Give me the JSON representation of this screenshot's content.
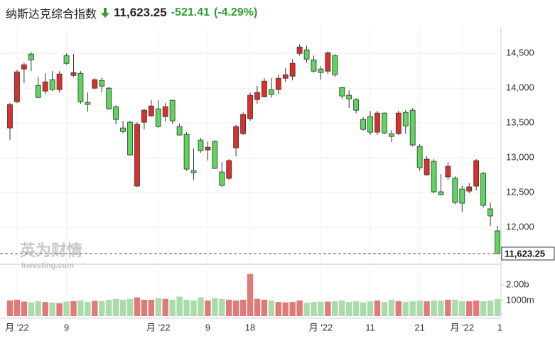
{
  "header": {
    "title": "纳斯达克综合指数",
    "price": "11,623.25",
    "change": "-521.41",
    "change_pct": "(-4.29%)"
  },
  "chart_data": {
    "type": "candlestick",
    "watermark": {
      "text": "英为财情",
      "sub": "Investing.com"
    },
    "categories": [
      null,
      "月 '22",
      null,
      null,
      null,
      null,
      null,
      null,
      "9",
      null,
      null,
      null,
      null,
      null,
      null,
      null,
      null,
      null,
      null,
      null,
      null,
      "月 '22",
      null,
      null,
      null,
      null,
      null,
      null,
      "9",
      null,
      null,
      null,
      null,
      null,
      "18",
      null,
      null,
      null,
      null,
      null,
      null,
      null,
      null,
      null,
      "月 '22",
      null,
      null,
      null,
      null,
      null,
      null,
      "11",
      null,
      null,
      null,
      null,
      null,
      null,
      "21",
      null,
      null,
      null,
      null,
      null,
      "月 '22",
      null,
      null,
      null,
      null,
      "1"
    ],
    "open": [
      13429,
      13806,
      14276,
      14490,
      14041,
      13959,
      14123,
      13980,
      14469,
      14184,
      14214,
      13796,
      14000,
      14112,
      14000,
      13735,
      13429,
      13511,
      12593,
      13511,
      13602,
      13704,
      13592,
      13827,
      13449,
      13337,
      12817,
      13255,
      13113,
      13235,
      12796,
      12705,
      13143,
      13347,
      13562,
      13837,
      13878,
      13980,
      13980,
      14143,
      14173,
      14500,
      14551,
      14408,
      14276,
      14245,
      14469,
      14010,
      13898,
      13837,
      13551,
      13592,
      13368,
      13643,
      13347,
      13347,
      13653,
      13684,
      13164,
      12755,
      12950,
      12511,
      12725,
      12705,
      12551,
      12521,
      12593,
      12776,
      12266,
      11950
    ],
    "high": [
      13786,
      14265,
      14367,
      14520,
      14163,
      14214,
      14245,
      14245,
      14500,
      14490,
      14245,
      13939,
      14143,
      14153,
      14021,
      13755,
      13531,
      13531,
      13511,
      13704,
      13827,
      13827,
      13786,
      13837,
      13490,
      13368,
      13133,
      13286,
      13235,
      13255,
      12939,
      12980,
      13470,
      13653,
      13939,
      14031,
      14143,
      14143,
      14194,
      14286,
      14418,
      14633,
      14612,
      14469,
      14316,
      14531,
      14490,
      14021,
      13970,
      13857,
      13582,
      13674,
      13674,
      13653,
      13398,
      13674,
      13684,
      13715,
      13194,
      13021,
      12980,
      12766,
      12939,
      12735,
      12593,
      12633,
      12980,
      12796,
      12358,
      12021
    ],
    "low": [
      13255,
      13786,
      14072,
      14245,
      13857,
      13919,
      13959,
      13939,
      14337,
      14163,
      13776,
      13663,
      13980,
      13939,
      13694,
      13480,
      13347,
      13031,
      12580,
      13409,
      13592,
      13429,
      13521,
      13490,
      13320,
      12817,
      12684,
      13072,
      12960,
      12837,
      12582,
      12684,
      13021,
      13327,
      13531,
      13776,
      13867,
      13867,
      13919,
      14092,
      14112,
      14469,
      14367,
      14225,
      14123,
      14204,
      14163,
      13847,
      13715,
      13643,
      13388,
      13327,
      13327,
      13337,
      13225,
      13327,
      13347,
      13164,
      12817,
      12745,
      12490,
      12460,
      12684,
      12327,
      12225,
      12490,
      12531,
      12286,
      12021,
      11634
    ],
    "close": [
      13766,
      14235,
      14337,
      14408,
      13867,
      14092,
      13980,
      14204,
      14357,
      14225,
      13806,
      13766,
      14123,
      14031,
      13704,
      13551,
      13378,
      13041,
      13480,
      13684,
      13745,
      13449,
      13735,
      13531,
      13327,
      12837,
      12786,
      13102,
      13153,
      12848,
      12602,
      12960,
      13449,
      13623,
      13898,
      13939,
      14102,
      13908,
      14143,
      14194,
      14357,
      14592,
      14418,
      14245,
      14225,
      14510,
      14194,
      13888,
      13847,
      13684,
      13409,
      13368,
      13643,
      13357,
      13306,
      13643,
      13459,
      13184,
      12858,
      12980,
      12511,
      12470,
      12878,
      12358,
      12347,
      12582,
      12960,
      12317,
      12164,
      11623.25
    ],
    "volume": [
      1000,
      1050,
      930,
      880,
      950,
      900,
      870,
      830,
      930,
      960,
      1000,
      910,
      980,
      960,
      1050,
      1100,
      1050,
      1100,
      1200,
      1050,
      1050,
      1150,
      1100,
      1050,
      1250,
      1050,
      1000,
      1200,
      1000,
      1150,
      1100,
      1050,
      1000,
      1050,
      2700,
      1100,
      1050,
      1000,
      900,
      880,
      900,
      1000,
      850,
      900,
      920,
      930,
      950,
      1000,
      900,
      950,
      880,
      950,
      1000,
      900,
      1050,
      950,
      900,
      950,
      1000,
      950,
      1000,
      1000,
      1050,
      1050,
      950,
      950,
      1000,
      950,
      1000,
      1100
    ],
    "up_color": "#d9302c",
    "down_color": "#5cd65c",
    "volume_up_color": "#e07a78",
    "volume_down_color": "#a9dcaa",
    "ylim": [
      11490,
      14880
    ],
    "yticks": [
      {
        "value": 12000,
        "label": "12,000"
      },
      {
        "value": 12500,
        "label": "12,500"
      },
      {
        "value": 13000,
        "label": "13,000"
      },
      {
        "value": 13500,
        "label": "13,500"
      },
      {
        "value": 14000,
        "label": "14,000"
      },
      {
        "value": 14500,
        "label": "14,500"
      }
    ],
    "volume_ylim": [
      0,
      3180
    ],
    "volume_yticks": [
      {
        "value": 2000,
        "label": "2.00b"
      },
      {
        "value": 1000,
        "label": "1000m"
      }
    ],
    "current_price": {
      "value": 11623.25,
      "label": "11,623.25"
    },
    "grid": true
  }
}
